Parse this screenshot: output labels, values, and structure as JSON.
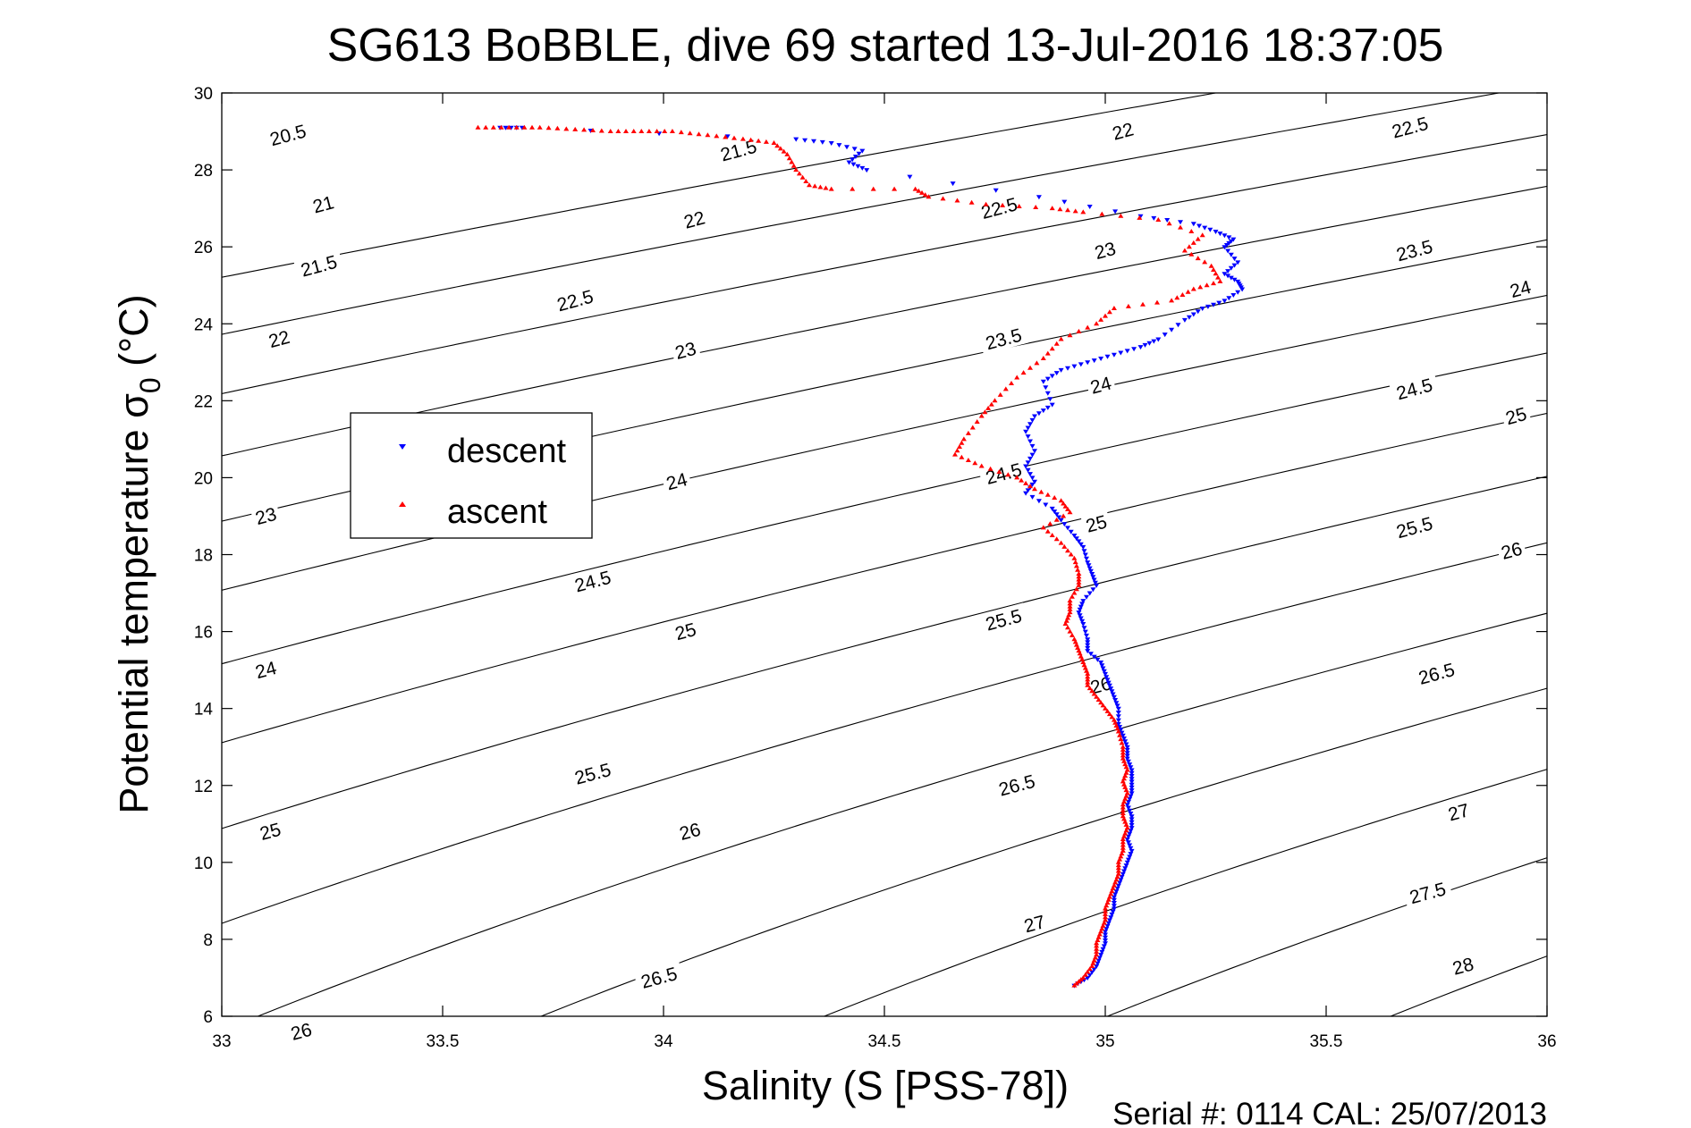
{
  "chart_data": {
    "type": "scatter",
    "title": "SG613 BoBBLE, dive 69 started 13-Jul-2016 18:37:05",
    "xlabel": "Salinity (S [PSS-78])",
    "ylabel": "Potential temperature σ",
    "ylabel_sub": "0",
    "ylabel_unit": " (°C)",
    "xlim": [
      33,
      36
    ],
    "ylim": [
      6,
      30
    ],
    "xticks": [
      33,
      33.5,
      34,
      34.5,
      35,
      35.5,
      36
    ],
    "xtick_labels": [
      "33",
      "33.5",
      "34",
      "34.5",
      "35",
      "35.5",
      "36"
    ],
    "yticks": [
      6,
      8,
      10,
      12,
      14,
      16,
      18,
      20,
      22,
      24,
      26,
      28,
      30
    ],
    "ytick_labels": [
      "6",
      "8",
      "10",
      "12",
      "14",
      "16",
      "18",
      "20",
      "22",
      "24",
      "26",
      "28",
      "30"
    ],
    "grid": false,
    "legend": {
      "placement": "left-middle",
      "entries": [
        "descent",
        "ascent"
      ]
    },
    "footer": "Serial #: 0114  CAL: 25/07/2013",
    "contours": {
      "levels": [
        20.5,
        21,
        21.5,
        22,
        22.5,
        23,
        23.5,
        24,
        24.5,
        25,
        25.5,
        26,
        26.5,
        27,
        27.5,
        28
      ],
      "labels": [
        {
          "text": "20.5",
          "s": 33.15,
          "t": 28.9
        },
        {
          "text": "21",
          "s": 33.23,
          "t": 27.1
        },
        {
          "text": "21.5",
          "s": 33.22,
          "t": 25.5
        },
        {
          "text": "22",
          "s": 33.13,
          "t": 23.6
        },
        {
          "text": "23",
          "s": 33.1,
          "t": 19.0
        },
        {
          "text": "24",
          "s": 33.1,
          "t": 15.0
        },
        {
          "text": "25",
          "s": 33.11,
          "t": 10.8
        },
        {
          "text": "26",
          "s": 33.18,
          "t": 5.6
        },
        {
          "text": "21.5",
          "s": 34.17,
          "t": 28.5
        },
        {
          "text": "22",
          "s": 34.07,
          "t": 26.7
        },
        {
          "text": "22.5",
          "s": 33.8,
          "t": 24.6
        },
        {
          "text": "23",
          "s": 34.05,
          "t": 23.3
        },
        {
          "text": "24",
          "s": 34.03,
          "t": 19.9
        },
        {
          "text": "24.5",
          "s": 33.84,
          "t": 17.3
        },
        {
          "text": "25",
          "s": 34.05,
          "t": 16.0
        },
        {
          "text": "25.5",
          "s": 33.84,
          "t": 12.3
        },
        {
          "text": "26",
          "s": 34.06,
          "t": 10.8
        },
        {
          "text": "26.5",
          "s": 33.99,
          "t": 7.0
        },
        {
          "text": "22.5",
          "s": 34.76,
          "t": 27.0
        },
        {
          "text": "23.5",
          "s": 34.77,
          "t": 23.6
        },
        {
          "text": "24.5",
          "s": 34.77,
          "t": 20.1
        },
        {
          "text": "25.5",
          "s": 34.77,
          "t": 16.3
        },
        {
          "text": "26.5",
          "s": 34.8,
          "t": 12.0
        },
        {
          "text": "27",
          "s": 34.84,
          "t": 8.4
        },
        {
          "text": "22",
          "s": 35.04,
          "t": 29.0
        },
        {
          "text": "23",
          "s": 35.0,
          "t": 25.9
        },
        {
          "text": "24",
          "s": 34.99,
          "t": 22.4
        },
        {
          "text": "25",
          "s": 34.98,
          "t": 18.8
        },
        {
          "text": "26",
          "s": 34.99,
          "t": 14.6
        },
        {
          "text": "22.5",
          "s": 35.69,
          "t": 29.1
        },
        {
          "text": "23.5",
          "s": 35.7,
          "t": 25.9
        },
        {
          "text": "24.5",
          "s": 35.7,
          "t": 22.3
        },
        {
          "text": "25.5",
          "s": 35.7,
          "t": 18.7
        },
        {
          "text": "26.5",
          "s": 35.75,
          "t": 14.9
        },
        {
          "text": "27",
          "s": 35.8,
          "t": 11.3
        },
        {
          "text": "27.5",
          "s": 35.73,
          "t": 9.2
        },
        {
          "text": "28",
          "s": 35.81,
          "t": 7.3
        },
        {
          "text": "24",
          "s": 35.94,
          "t": 24.9
        },
        {
          "text": "25",
          "s": 35.93,
          "t": 21.6
        },
        {
          "text": "26",
          "s": 35.92,
          "t": 18.1
        }
      ]
    },
    "series": [
      {
        "name": "descent",
        "color": "#0000ff",
        "marker": "triangle-down",
        "points": [
          [
            33.63,
            29.1
          ],
          [
            33.68,
            29.1
          ],
          [
            34.3,
            28.8
          ],
          [
            34.38,
            28.7
          ],
          [
            34.45,
            28.5
          ],
          [
            34.42,
            28.2
          ],
          [
            34.46,
            28.0
          ],
          [
            34.85,
            27.3
          ],
          [
            35.08,
            26.8
          ],
          [
            35.2,
            26.6
          ],
          [
            35.25,
            26.4
          ],
          [
            35.29,
            26.2
          ],
          [
            35.27,
            26.0
          ],
          [
            35.3,
            25.6
          ],
          [
            35.27,
            25.3
          ],
          [
            35.3,
            25.1
          ],
          [
            35.31,
            24.9
          ],
          [
            35.27,
            24.6
          ],
          [
            35.22,
            24.4
          ],
          [
            35.18,
            24.1
          ],
          [
            35.12,
            23.6
          ],
          [
            35.08,
            23.4
          ],
          [
            35.02,
            23.2
          ],
          [
            34.96,
            23.0
          ],
          [
            34.9,
            22.8
          ],
          [
            34.86,
            22.5
          ],
          [
            34.88,
            21.9
          ],
          [
            34.84,
            21.6
          ],
          [
            34.82,
            21.2
          ],
          [
            34.84,
            20.7
          ],
          [
            34.82,
            20.3
          ],
          [
            34.84,
            19.9
          ],
          [
            34.82,
            19.6
          ],
          [
            34.88,
            19.2
          ],
          [
            34.9,
            18.9
          ],
          [
            34.93,
            18.5
          ],
          [
            34.95,
            18.2
          ],
          [
            34.96,
            17.8
          ],
          [
            34.97,
            17.5
          ],
          [
            34.98,
            17.2
          ],
          [
            34.95,
            16.8
          ],
          [
            34.94,
            16.5
          ],
          [
            34.95,
            16.2
          ],
          [
            34.96,
            15.8
          ],
          [
            34.96,
            15.5
          ],
          [
            34.99,
            15.2
          ],
          [
            35.0,
            14.9
          ],
          [
            35.01,
            14.6
          ],
          [
            35.02,
            14.3
          ],
          [
            35.03,
            14.0
          ],
          [
            35.03,
            13.6
          ],
          [
            35.04,
            13.3
          ],
          [
            35.05,
            13.0
          ],
          [
            35.05,
            12.7
          ],
          [
            35.06,
            12.4
          ],
          [
            35.06,
            12.1
          ],
          [
            35.06,
            11.8
          ],
          [
            35.05,
            11.5
          ],
          [
            35.06,
            11.2
          ],
          [
            35.06,
            10.9
          ],
          [
            35.05,
            10.6
          ],
          [
            35.06,
            10.3
          ],
          [
            35.05,
            10.0
          ],
          [
            35.04,
            9.7
          ],
          [
            35.03,
            9.4
          ],
          [
            35.02,
            9.1
          ],
          [
            35.02,
            8.8
          ],
          [
            35.01,
            8.5
          ],
          [
            35.0,
            8.2
          ],
          [
            35.0,
            7.9
          ],
          [
            34.99,
            7.6
          ],
          [
            34.98,
            7.3
          ],
          [
            34.96,
            7.0
          ],
          [
            34.93,
            6.8
          ]
        ]
      },
      {
        "name": "ascent",
        "color": "#ff0000",
        "marker": "triangle-up",
        "points": [
          [
            33.58,
            29.1
          ],
          [
            33.65,
            29.1
          ],
          [
            33.72,
            29.1
          ],
          [
            33.8,
            29.05
          ],
          [
            33.88,
            29.0
          ],
          [
            33.95,
            29.0
          ],
          [
            34.02,
            29.0
          ],
          [
            34.1,
            28.9
          ],
          [
            34.18,
            28.8
          ],
          [
            34.25,
            28.7
          ],
          [
            34.28,
            28.4
          ],
          [
            34.3,
            28.0
          ],
          [
            34.33,
            27.6
          ],
          [
            34.38,
            27.5
          ],
          [
            34.57,
            27.5
          ],
          [
            34.6,
            27.3
          ],
          [
            34.73,
            27.1
          ],
          [
            34.88,
            27.0
          ],
          [
            34.95,
            26.9
          ],
          [
            35.12,
            26.7
          ],
          [
            35.22,
            26.3
          ],
          [
            35.18,
            25.9
          ],
          [
            35.24,
            25.5
          ],
          [
            35.26,
            25.1
          ],
          [
            35.2,
            24.9
          ],
          [
            35.15,
            24.6
          ],
          [
            35.02,
            24.4
          ],
          [
            34.98,
            24.0
          ],
          [
            34.9,
            23.6
          ],
          [
            34.86,
            23.1
          ],
          [
            34.8,
            22.6
          ],
          [
            34.75,
            22.0
          ],
          [
            34.72,
            21.6
          ],
          [
            34.68,
            21.0
          ],
          [
            34.66,
            20.6
          ],
          [
            34.72,
            20.3
          ],
          [
            34.8,
            20.0
          ],
          [
            34.84,
            19.7
          ],
          [
            34.9,
            19.4
          ],
          [
            34.92,
            19.1
          ],
          [
            34.86,
            18.7
          ],
          [
            34.9,
            18.3
          ],
          [
            34.93,
            17.9
          ],
          [
            34.94,
            17.5
          ],
          [
            34.94,
            17.2
          ],
          [
            34.92,
            16.8
          ],
          [
            34.92,
            16.5
          ],
          [
            34.91,
            16.2
          ],
          [
            34.93,
            15.8
          ],
          [
            34.94,
            15.5
          ],
          [
            34.95,
            15.2
          ],
          [
            34.96,
            14.9
          ],
          [
            34.96,
            14.6
          ],
          [
            34.98,
            14.3
          ],
          [
            35.0,
            14.0
          ],
          [
            35.02,
            13.7
          ],
          [
            35.03,
            13.4
          ],
          [
            35.04,
            13.0
          ],
          [
            35.04,
            12.7
          ],
          [
            35.05,
            12.4
          ],
          [
            35.04,
            12.1
          ],
          [
            35.05,
            11.8
          ],
          [
            35.04,
            11.5
          ],
          [
            35.04,
            11.2
          ],
          [
            35.05,
            10.9
          ],
          [
            35.04,
            10.6
          ],
          [
            35.04,
            10.3
          ],
          [
            35.03,
            10.0
          ],
          [
            35.03,
            9.7
          ],
          [
            35.02,
            9.4
          ],
          [
            35.01,
            9.1
          ],
          [
            35.0,
            8.8
          ],
          [
            35.0,
            8.5
          ],
          [
            34.99,
            8.2
          ],
          [
            34.98,
            7.9
          ],
          [
            34.98,
            7.6
          ],
          [
            34.97,
            7.3
          ],
          [
            34.95,
            7.0
          ],
          [
            34.93,
            6.8
          ]
        ]
      }
    ]
  }
}
